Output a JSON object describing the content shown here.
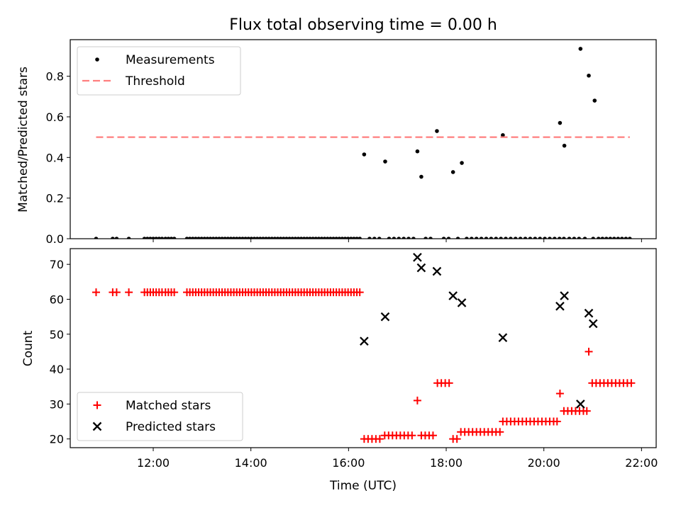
{
  "chart_data": {
    "title": "Flux total observing time = 0.00 h",
    "xlabel": "Time (UTC)",
    "xlim": [
      10.3,
      22.3
    ],
    "xticks": [
      12,
      14,
      16,
      18,
      20,
      22
    ],
    "xtick_labels": [
      "12:00",
      "14:00",
      "16:00",
      "18:00",
      "20:00",
      "22:00"
    ],
    "panels": [
      {
        "type": "scatter",
        "ylabel": "Matched/Predicted stars",
        "ylim": [
          0,
          0.98
        ],
        "yticks": [
          0.0,
          0.2,
          0.4,
          0.6,
          0.8
        ],
        "ytick_labels": [
          "0.0",
          "0.2",
          "0.4",
          "0.6",
          "0.8"
        ],
        "legend": {
          "position": "upper-left",
          "entries": [
            "Measurements",
            "Threshold"
          ]
        },
        "series": [
          {
            "name": "Measurements",
            "marker": "dot",
            "color": "#000000",
            "x": [
              10.83,
              11.17,
              11.25,
              11.5,
              11.82,
              11.88,
              11.94,
              12.0,
              12.06,
              12.12,
              12.18,
              12.25,
              12.31,
              12.37,
              12.43,
              12.69,
              12.75,
              12.81,
              12.87,
              12.93,
              12.99,
              13.05,
              13.11,
              13.17,
              13.23,
              13.29,
              13.35,
              13.41,
              13.47,
              13.53,
              13.59,
              13.65,
              13.71,
              13.77,
              13.83,
              13.89,
              13.95,
              14.01,
              14.07,
              14.13,
              14.19,
              14.25,
              14.31,
              14.37,
              14.43,
              14.49,
              14.55,
              14.61,
              14.67,
              14.73,
              14.79,
              14.85,
              14.91,
              14.97,
              15.03,
              15.09,
              15.15,
              15.21,
              15.27,
              15.33,
              15.39,
              15.45,
              15.51,
              15.57,
              15.63,
              15.69,
              15.75,
              15.81,
              15.87,
              15.93,
              15.99,
              16.05,
              16.11,
              16.17,
              16.23,
              16.32,
              16.43,
              16.53,
              16.63,
              16.75,
              16.83,
              16.93,
              17.03,
              17.13,
              17.23,
              17.33,
              17.41,
              17.49,
              17.58,
              17.68,
              17.81,
              17.95,
              18.05,
              18.14,
              18.24,
              18.32,
              18.42,
              18.52,
              18.62,
              18.72,
              18.82,
              18.92,
              19.02,
              19.12,
              19.16,
              19.22,
              19.32,
              19.42,
              19.52,
              19.62,
              19.72,
              19.82,
              19.92,
              20.02,
              20.12,
              20.22,
              20.32,
              20.33,
              20.41,
              20.42,
              20.52,
              20.62,
              20.72,
              20.75,
              20.84,
              20.92,
              21.01,
              21.04,
              21.12,
              21.2,
              21.28,
              21.36,
              21.44,
              21.52,
              21.6,
              21.68,
              21.76
            ],
            "y": [
              0.0,
              0.0,
              0.0,
              0.0,
              0.0,
              0.0,
              0.0,
              0.0,
              0.0,
              0.0,
              0.0,
              0.0,
              0.0,
              0.0,
              0.0,
              0.0,
              0.0,
              0.0,
              0.0,
              0.0,
              0.0,
              0.0,
              0.0,
              0.0,
              0.0,
              0.0,
              0.0,
              0.0,
              0.0,
              0.0,
              0.0,
              0.0,
              0.0,
              0.0,
              0.0,
              0.0,
              0.0,
              0.0,
              0.0,
              0.0,
              0.0,
              0.0,
              0.0,
              0.0,
              0.0,
              0.0,
              0.0,
              0.0,
              0.0,
              0.0,
              0.0,
              0.0,
              0.0,
              0.0,
              0.0,
              0.0,
              0.0,
              0.0,
              0.0,
              0.0,
              0.0,
              0.0,
              0.0,
              0.0,
              0.0,
              0.0,
              0.0,
              0.0,
              0.0,
              0.0,
              0.0,
              0.0,
              0.0,
              0.0,
              0.0,
              0.415,
              0.0,
              0.0,
              0.0,
              0.38,
              0.0,
              0.0,
              0.0,
              0.0,
              0.0,
              0.0,
              0.43,
              0.305,
              0.0,
              0.0,
              0.53,
              0.0,
              0.0,
              0.328,
              0.0,
              0.373,
              0.0,
              0.0,
              0.0,
              0.0,
              0.0,
              0.0,
              0.0,
              0.0,
              0.51,
              0.0,
              0.0,
              0.0,
              0.0,
              0.0,
              0.0,
              0.0,
              0.0,
              0.0,
              0.0,
              0.0,
              0.0,
              0.57,
              0.0,
              0.458,
              0.0,
              0.0,
              0.0,
              0.935,
              0.0,
              0.803,
              0.0,
              0.68,
              0.0,
              0.0,
              0.0,
              0.0,
              0.0,
              0.0,
              0.0,
              0.0,
              0.0
            ]
          },
          {
            "name": "Threshold",
            "marker": "dashed-line",
            "color": "#ff7f7f",
            "x": [
              10.83,
              21.76
            ],
            "y": [
              0.5,
              0.5
            ]
          }
        ]
      },
      {
        "type": "scatter",
        "ylabel": "Count",
        "ylim": [
          17.5,
          74.5
        ],
        "yticks": [
          20,
          30,
          40,
          50,
          60,
          70
        ],
        "ytick_labels": [
          "20",
          "30",
          "40",
          "50",
          "60",
          "70"
        ],
        "legend": {
          "position": "lower-left",
          "entries": [
            "Matched stars",
            "Predicted stars"
          ]
        },
        "series": [
          {
            "name": "Matched stars",
            "marker": "plus",
            "color": "#ff0000",
            "x": [
              10.83,
              11.17,
              11.25,
              11.5,
              11.82,
              11.88,
              11.94,
              12.0,
              12.06,
              12.12,
              12.18,
              12.25,
              12.31,
              12.37,
              12.43,
              12.69,
              12.75,
              12.81,
              12.87,
              12.93,
              12.99,
              13.05,
              13.11,
              13.17,
              13.23,
              13.29,
              13.35,
              13.41,
              13.47,
              13.53,
              13.59,
              13.65,
              13.71,
              13.77,
              13.83,
              13.89,
              13.95,
              14.01,
              14.07,
              14.13,
              14.19,
              14.25,
              14.31,
              14.37,
              14.43,
              14.49,
              14.55,
              14.61,
              14.67,
              14.73,
              14.79,
              14.85,
              14.91,
              14.97,
              15.03,
              15.09,
              15.15,
              15.21,
              15.27,
              15.33,
              15.39,
              15.45,
              15.51,
              15.57,
              15.63,
              15.69,
              15.75,
              15.81,
              15.87,
              15.93,
              15.99,
              16.05,
              16.11,
              16.17,
              16.23,
              16.32,
              16.4,
              16.48,
              16.56,
              16.64,
              16.74,
              16.82,
              16.9,
              16.98,
              17.06,
              17.14,
              17.22,
              17.3,
              17.41,
              17.49,
              17.57,
              17.65,
              17.73,
              17.82,
              17.9,
              17.98,
              18.06,
              18.14,
              18.22,
              18.3,
              18.38,
              18.46,
              18.54,
              18.62,
              18.7,
              18.78,
              18.86,
              18.94,
              19.02,
              19.1,
              19.16,
              19.24,
              19.32,
              19.4,
              19.48,
              19.56,
              19.64,
              19.72,
              19.8,
              19.88,
              19.96,
              20.04,
              20.12,
              20.2,
              20.27,
              20.33,
              20.41,
              20.49,
              20.57,
              20.65,
              20.73,
              20.81,
              20.88,
              20.92,
              20.99,
              21.07,
              21.15,
              21.23,
              21.31,
              21.39,
              21.47,
              21.55,
              21.63,
              21.71,
              21.79
            ],
            "y": [
              62,
              62,
              62,
              62,
              62,
              62,
              62,
              62,
              62,
              62,
              62,
              62,
              62,
              62,
              62,
              62,
              62,
              62,
              62,
              62,
              62,
              62,
              62,
              62,
              62,
              62,
              62,
              62,
              62,
              62,
              62,
              62,
              62,
              62,
              62,
              62,
              62,
              62,
              62,
              62,
              62,
              62,
              62,
              62,
              62,
              62,
              62,
              62,
              62,
              62,
              62,
              62,
              62,
              62,
              62,
              62,
              62,
              62,
              62,
              62,
              62,
              62,
              62,
              62,
              62,
              62,
              62,
              62,
              62,
              62,
              62,
              62,
              62,
              62,
              62,
              20,
              20,
              20,
              20,
              20,
              21,
              21,
              21,
              21,
              21,
              21,
              21,
              21,
              31,
              21,
              21,
              21,
              21,
              36,
              36,
              36,
              36,
              20,
              20,
              22,
              22,
              22,
              22,
              22,
              22,
              22,
              22,
              22,
              22,
              22,
              25,
              25,
              25,
              25,
              25,
              25,
              25,
              25,
              25,
              25,
              25,
              25,
              25,
              25,
              25,
              33,
              28,
              28,
              28,
              28,
              28,
              28,
              28,
              45,
              36,
              36,
              36,
              36,
              36,
              36,
              36,
              36,
              36,
              36,
              36
            ]
          },
          {
            "name": "Predicted stars",
            "marker": "x",
            "color": "#000000",
            "x": [
              16.32,
              16.75,
              17.41,
              17.49,
              17.81,
              18.14,
              18.32,
              19.16,
              20.33,
              20.42,
              20.75,
              20.92,
              21.01
            ],
            "y": [
              48,
              55,
              72,
              69,
              68,
              61,
              59,
              49,
              58,
              61,
              30,
              56,
              53
            ]
          }
        ]
      }
    ]
  }
}
